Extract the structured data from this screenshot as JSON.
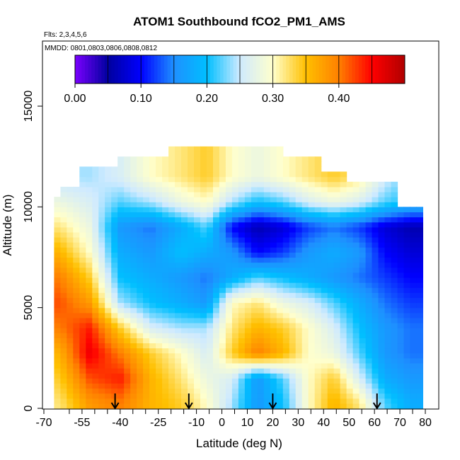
{
  "chart_data": {
    "type": "heatmap",
    "title": "ATOM1 Southbound fCO2_PM1_AMS",
    "flights_note": "Flts: 2,3,4,5,6",
    "mmdd_note": "MMDD: 0801,0803,0806,0808,0812",
    "xlabel": "Latitude (deg N)",
    "ylabel": "Altitude (m)",
    "xlim": [
      -70,
      85
    ],
    "ylim": [
      0,
      17500
    ],
    "x_ticks": [
      -70,
      -55,
      -40,
      -25,
      -10,
      0,
      10,
      20,
      30,
      40,
      50,
      60,
      70,
      80
    ],
    "x_minor_ticks": [
      -60,
      -50,
      -45,
      -35,
      -30,
      -20,
      -15,
      -5,
      5,
      15,
      25,
      35,
      45,
      55,
      65,
      75
    ],
    "y_ticks": [
      0,
      5000,
      10000,
      15000
    ],
    "colorbar": {
      "range": [
        0,
        0.5
      ],
      "ticks": [
        0.0,
        0.1,
        0.2,
        0.3,
        0.4
      ],
      "tick_labels": [
        "0.00",
        "0.10",
        "0.20",
        "0.30",
        "0.40"
      ],
      "colors": [
        "#7a00ff",
        "#00009e",
        "#0000ff",
        "#1e90ff",
        "#00bfff",
        "#cfeaff",
        "#ffffcc",
        "#ffc000",
        "#ff8000",
        "#ff0000",
        "#b00000"
      ]
    },
    "lat_profile_columns": [
      -64,
      -52,
      -40,
      -28,
      -16,
      -6,
      4,
      14,
      24,
      34,
      44,
      54,
      64,
      74
    ],
    "alt_levels": [
      250,
      1500,
      2750,
      4000,
      5250,
      6500,
      7750,
      9000,
      10250,
      11500
    ],
    "values": [
      [
        0.32,
        0.38,
        0.4,
        0.36,
        0.34,
        0.3,
        0.24,
        0.16,
        0.2,
        0.3,
        0.36,
        0.32,
        0.22,
        0.18
      ],
      [
        0.34,
        0.42,
        0.44,
        0.36,
        0.32,
        0.28,
        0.26,
        0.16,
        0.22,
        0.3,
        0.34,
        0.26,
        0.18,
        0.16
      ],
      [
        0.36,
        0.46,
        0.4,
        0.34,
        0.3,
        0.26,
        0.34,
        0.4,
        0.36,
        0.3,
        0.28,
        0.22,
        0.16,
        0.14
      ],
      [
        0.4,
        0.44,
        0.34,
        0.26,
        0.24,
        0.24,
        0.32,
        0.36,
        0.34,
        0.3,
        0.26,
        0.2,
        0.16,
        0.14
      ],
      [
        0.42,
        0.38,
        0.24,
        0.2,
        0.18,
        0.16,
        0.3,
        0.32,
        0.28,
        0.26,
        0.22,
        0.18,
        0.14,
        0.12
      ],
      [
        0.4,
        0.34,
        0.2,
        0.18,
        0.16,
        0.14,
        0.18,
        0.22,
        0.2,
        0.18,
        0.16,
        0.14,
        0.12,
        0.1
      ],
      [
        0.36,
        0.3,
        0.18,
        0.16,
        0.2,
        0.18,
        0.16,
        0.1,
        0.12,
        0.16,
        0.18,
        0.16,
        0.1,
        0.08
      ],
      [
        0.32,
        0.28,
        0.16,
        0.14,
        0.18,
        0.22,
        0.1,
        0.06,
        0.08,
        0.12,
        0.14,
        0.12,
        0.08,
        0.06
      ],
      [
        0.28,
        0.26,
        0.22,
        0.24,
        0.28,
        0.3,
        0.24,
        0.2,
        0.22,
        0.26,
        0.28,
        0.26,
        0.22,
        0.2
      ],
      [
        0.24,
        0.24,
        0.26,
        0.3,
        0.32,
        0.34,
        0.3,
        0.28,
        0.3,
        0.32,
        0.34,
        0.32,
        0.26,
        0.22
      ]
    ],
    "arrows_at_latitude": [
      -42,
      -13,
      20,
      61
    ]
  }
}
